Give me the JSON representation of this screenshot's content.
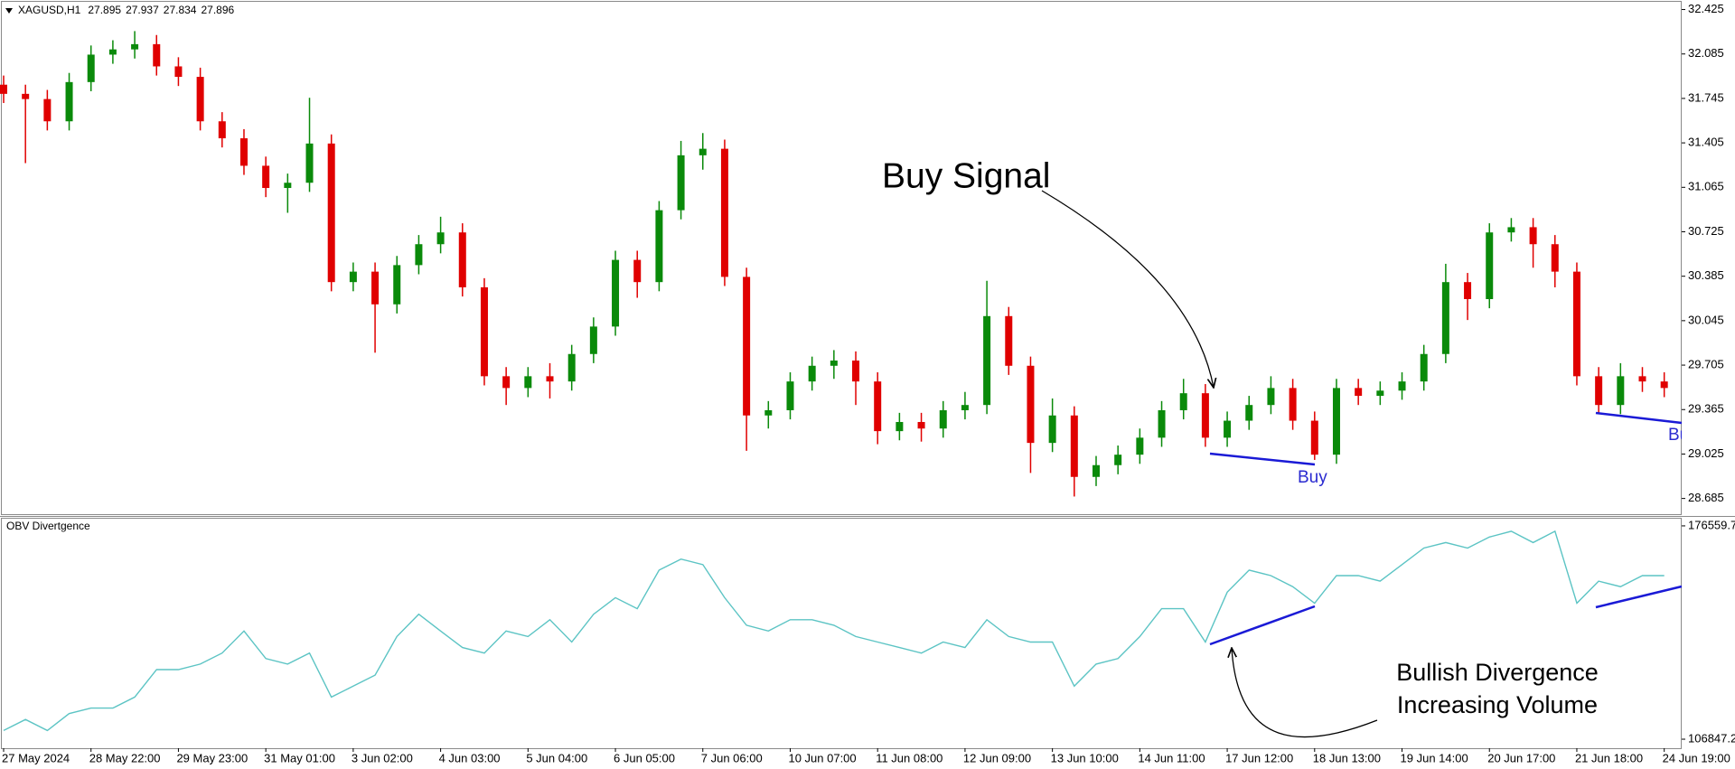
{
  "chart_data": [
    {
      "type": "candlestick",
      "title": "XAGUSD,H1",
      "header_values": [
        27.895,
        27.937,
        27.834,
        27.896
      ],
      "categories": [
        "27 May 2024",
        null,
        null,
        null,
        "28 May 22:00",
        null,
        null,
        null,
        "29 May 23:00",
        null,
        null,
        null,
        "31 May 01:00",
        null,
        null,
        null,
        "3 Jun 02:00",
        null,
        null,
        null,
        "4 Jun 03:00",
        null,
        null,
        null,
        "5 Jun 04:00",
        null,
        null,
        null,
        "6 Jun 05:00",
        null,
        null,
        null,
        "7 Jun 06:00",
        null,
        null,
        null,
        "10 Jun 07:00",
        null,
        null,
        null,
        "11 Jun 08:00",
        null,
        null,
        null,
        "12 Jun 09:00",
        null,
        null,
        null,
        "13 Jun 10:00",
        null,
        null,
        null,
        "14 Jun 11:00",
        null,
        null,
        null,
        "17 Jun 12:00",
        null,
        null,
        null,
        "18 Jun 13:00",
        null,
        null,
        null,
        "19 Jun 14:00",
        null,
        null,
        null,
        "20 Jun 17:00",
        null,
        null,
        null,
        "21 Jun 18:00",
        null,
        null,
        null,
        "24 Jun 19:00"
      ],
      "open": [
        31.85,
        31.78,
        31.74,
        31.57,
        31.87,
        32.08,
        32.12,
        32.16,
        31.99,
        31.91,
        31.57,
        31.44,
        31.23,
        31.06,
        31.1,
        31.4,
        30.34,
        30.42,
        30.17,
        30.47,
        30.63,
        30.72,
        30.3,
        29.62,
        29.53,
        29.62,
        29.58,
        29.79,
        30.0,
        30.51,
        30.34,
        30.89,
        31.31,
        31.36,
        30.38,
        29.32,
        29.36,
        29.58,
        29.7,
        29.74,
        29.58,
        29.2,
        29.27,
        29.22,
        29.36,
        29.4,
        30.08,
        29.7,
        29.11,
        29.32,
        28.85,
        28.94,
        29.02,
        29.15,
        29.36,
        29.49,
        29.15,
        29.28,
        29.4,
        29.53,
        29.28,
        29.02,
        29.53,
        29.47,
        29.51,
        29.58,
        29.79,
        30.34,
        30.21,
        30.72,
        30.76,
        30.63,
        30.42,
        29.62,
        29.4,
        29.62,
        29.58
      ],
      "high": [
        31.92,
        31.85,
        31.81,
        31.94,
        32.15,
        32.19,
        32.26,
        32.23,
        32.06,
        31.98,
        31.64,
        31.51,
        31.3,
        31.17,
        31.75,
        31.47,
        30.49,
        30.49,
        30.54,
        30.7,
        30.84,
        30.79,
        30.37,
        29.69,
        29.69,
        29.72,
        29.86,
        30.07,
        30.58,
        30.58,
        30.96,
        31.42,
        31.48,
        31.43,
        30.45,
        29.43,
        29.65,
        29.77,
        29.82,
        29.81,
        29.65,
        29.34,
        29.34,
        29.43,
        29.5,
        30.35,
        30.15,
        29.77,
        29.45,
        29.39,
        29.01,
        29.09,
        29.22,
        29.43,
        29.6,
        29.56,
        29.35,
        29.47,
        29.62,
        29.6,
        29.35,
        29.6,
        29.6,
        29.58,
        29.65,
        29.86,
        30.48,
        30.41,
        30.79,
        30.83,
        30.83,
        30.7,
        30.49,
        29.69,
        29.72,
        29.69,
        29.65
      ],
      "low": [
        31.71,
        31.25,
        31.5,
        31.5,
        31.8,
        32.01,
        32.05,
        31.92,
        31.84,
        31.5,
        31.37,
        31.16,
        30.99,
        30.87,
        31.03,
        30.27,
        30.27,
        29.8,
        30.1,
        30.4,
        30.56,
        30.23,
        29.55,
        29.4,
        29.46,
        29.45,
        29.51,
        29.72,
        29.93,
        30.22,
        30.27,
        30.82,
        31.2,
        30.31,
        29.05,
        29.22,
        29.29,
        29.51,
        29.6,
        29.4,
        29.1,
        29.13,
        29.12,
        29.15,
        29.29,
        29.33,
        29.63,
        28.88,
        29.04,
        28.7,
        28.78,
        28.87,
        28.95,
        29.08,
        29.29,
        29.08,
        29.08,
        29.21,
        29.33,
        29.21,
        28.98,
        28.95,
        29.4,
        29.4,
        29.44,
        29.51,
        29.72,
        30.05,
        30.14,
        30.65,
        30.45,
        30.3,
        29.55,
        29.33,
        29.33,
        29.5,
        29.46
      ],
      "close": [
        31.78,
        31.74,
        31.57,
        31.87,
        32.08,
        32.12,
        32.16,
        31.99,
        31.91,
        31.57,
        31.44,
        31.23,
        31.06,
        31.1,
        31.4,
        30.34,
        30.42,
        30.17,
        30.47,
        30.63,
        30.72,
        30.3,
        29.62,
        29.53,
        29.62,
        29.58,
        29.79,
        30.0,
        30.51,
        30.34,
        30.89,
        31.31,
        31.36,
        30.38,
        29.32,
        29.36,
        29.58,
        29.7,
        29.74,
        29.58,
        29.2,
        29.27,
        29.22,
        29.36,
        29.4,
        30.08,
        29.7,
        29.11,
        29.32,
        28.85,
        28.94,
        29.02,
        29.15,
        29.36,
        29.49,
        29.15,
        29.28,
        29.4,
        29.53,
        29.28,
        29.02,
        29.53,
        29.47,
        29.51,
        29.58,
        29.79,
        30.34,
        30.21,
        30.72,
        30.76,
        30.63,
        30.42,
        29.62,
        29.4,
        29.62,
        29.58,
        29.53
      ],
      "up_color": "#0a8a0a",
      "down_color": "#e00000",
      "ylim": [
        28.558,
        32.484
      ],
      "yticks": [
        32.425,
        32.085,
        31.745,
        31.405,
        31.065,
        30.725,
        30.385,
        30.045,
        29.705,
        29.365,
        29.025,
        28.685
      ],
      "annotations": [
        "Buy Signal",
        "Buy",
        "Buy"
      ]
    },
    {
      "type": "line",
      "title": "OBV Divertgence",
      "color": "#5cc4c4",
      "values": [
        109700,
        113300,
        109700,
        115200,
        117000,
        117000,
        120600,
        129600,
        129600,
        131400,
        135000,
        142200,
        133200,
        131400,
        135000,
        120600,
        124200,
        127800,
        140400,
        147700,
        142200,
        136800,
        135000,
        142200,
        140400,
        145900,
        138600,
        147700,
        153100,
        149500,
        162100,
        165700,
        163900,
        153100,
        144100,
        142200,
        145900,
        145900,
        144100,
        140400,
        138600,
        136800,
        135000,
        138600,
        136800,
        145900,
        140400,
        138600,
        138600,
        124200,
        131400,
        133200,
        140400,
        149500,
        149500,
        138600,
        154900,
        162100,
        160300,
        156700,
        151300,
        160300,
        160300,
        158500,
        163900,
        169300,
        171100,
        169300,
        172900,
        174800,
        171100,
        174800,
        151300,
        158500,
        156700,
        160300,
        160300
      ],
      "ylim": [
        103900,
        179200
      ],
      "yticks": [
        106847.2,
        176559.7
      ],
      "annotations": [
        "Bullish Divergence",
        "Increasing Volume"
      ]
    }
  ]
}
